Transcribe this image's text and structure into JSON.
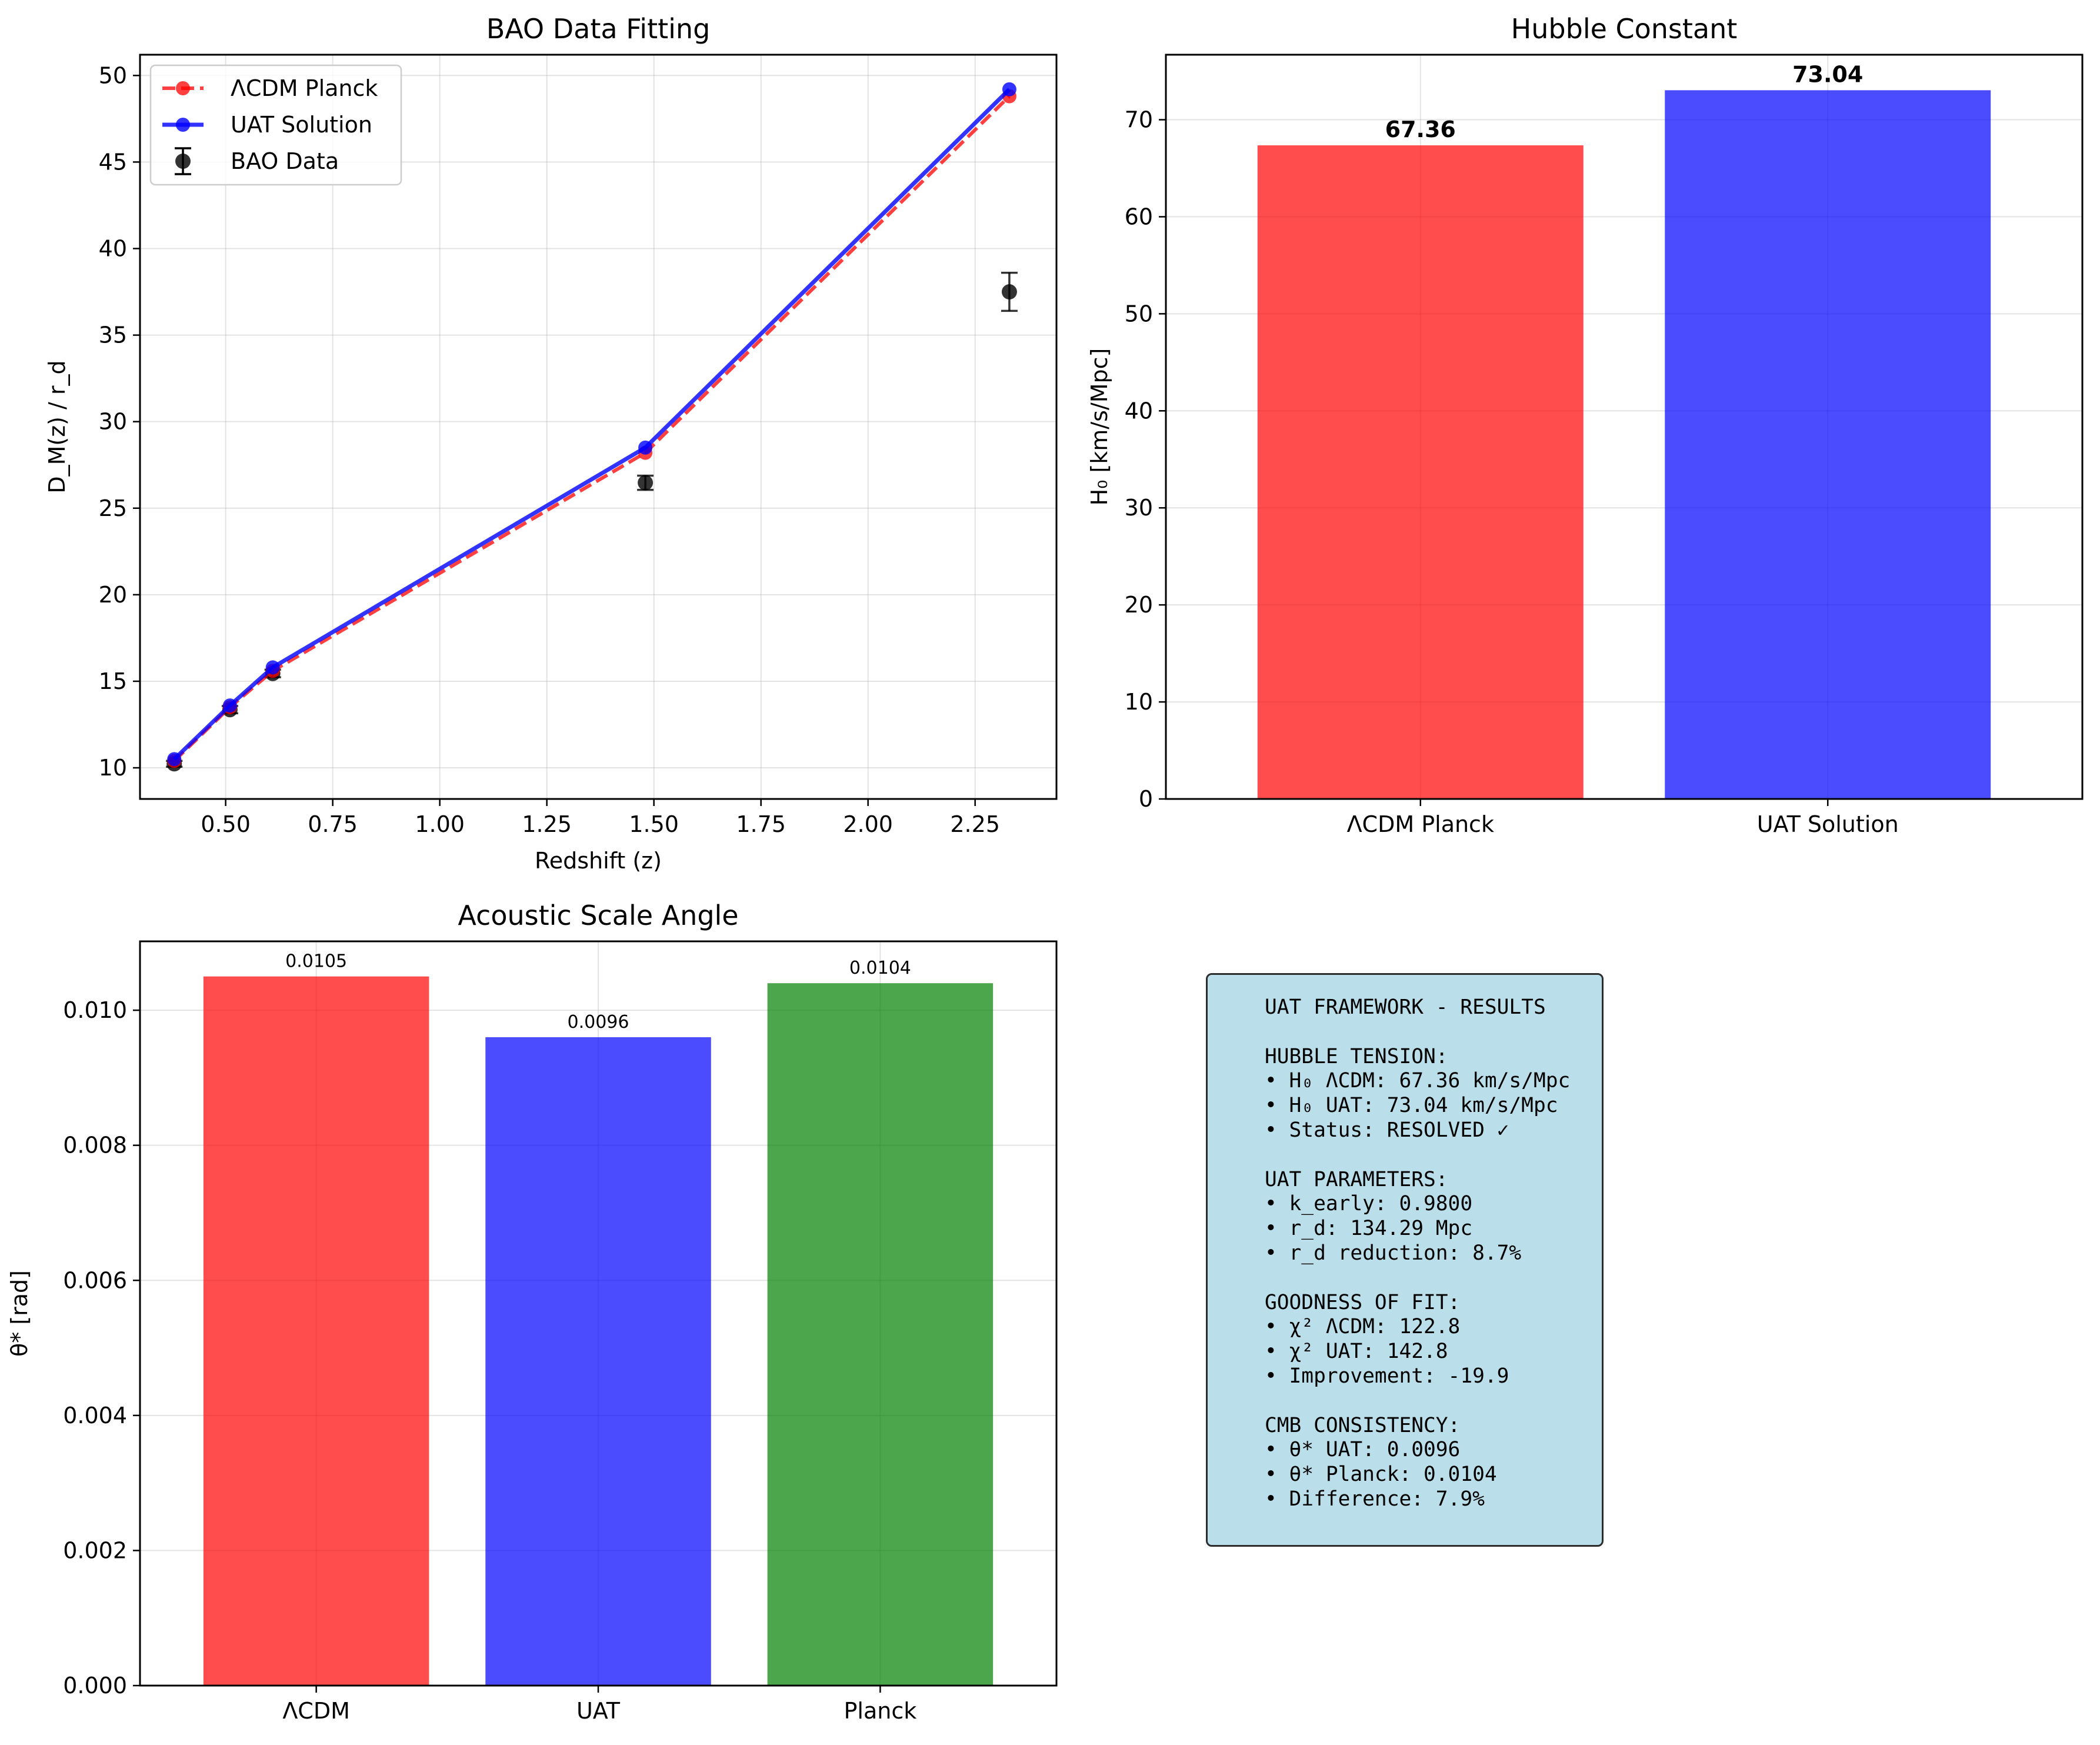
{
  "colors": {
    "lcdm": "#ff0000",
    "uat": "#0000ff",
    "planck": "#008000",
    "data": "#000000",
    "textbox_bg": "#add8e6"
  },
  "chart_data": [
    {
      "type": "line",
      "title": "BAO Data Fitting",
      "xlabel": "Redshift (z)",
      "ylabel": "D_M(z) / r_d",
      "xlim": [
        0.3,
        2.44
      ],
      "ylim": [
        8.2,
        51.2
      ],
      "xticks": [
        0.5,
        0.75,
        1.0,
        1.25,
        1.5,
        1.75,
        2.0,
        2.25
      ],
      "xtick_labels": [
        "0.50",
        "0.75",
        "1.00",
        "1.25",
        "1.50",
        "1.75",
        "2.00",
        "2.25"
      ],
      "yticks": [
        10,
        15,
        20,
        25,
        30,
        35,
        40,
        45,
        50
      ],
      "ytick_labels": [
        "10",
        "15",
        "20",
        "25",
        "30",
        "35",
        "40",
        "45",
        "50"
      ],
      "grid": true,
      "legend": "upper left",
      "series": [
        {
          "name": "ΛCDM Planck",
          "style": "dashed-line-with-circles",
          "color": "#ff0000",
          "x": [
            0.38,
            0.51,
            0.61,
            1.48,
            2.33
          ],
          "y": [
            10.4,
            13.5,
            15.6,
            28.2,
            48.8
          ]
        },
        {
          "name": "UAT Solution",
          "style": "solid-line-with-circles",
          "color": "#0000ff",
          "x": [
            0.38,
            0.51,
            0.61,
            1.48,
            2.33
          ],
          "y": [
            10.5,
            13.6,
            15.8,
            28.5,
            49.2
          ]
        },
        {
          "name": "BAO Data",
          "style": "errorbar-points",
          "color": "#000000",
          "x": [
            0.38,
            0.51,
            0.61,
            1.48,
            2.33
          ],
          "y": [
            10.23,
            13.36,
            15.45,
            26.47,
            37.5
          ],
          "yerr": [
            0.17,
            0.21,
            0.22,
            0.41,
            1.1
          ]
        }
      ]
    },
    {
      "type": "bar",
      "title": "Hubble Constant",
      "xlabel": "",
      "ylabel": "H₀ [km/s/Mpc]",
      "ylim": [
        0,
        76.7
      ],
      "yticks": [
        0,
        10,
        20,
        30,
        40,
        50,
        60,
        70
      ],
      "ytick_labels": [
        "0",
        "10",
        "20",
        "30",
        "40",
        "50",
        "60",
        "70"
      ],
      "grid": true,
      "categories": [
        "ΛCDM Planck",
        "UAT Solution"
      ],
      "values": [
        67.36,
        73.04
      ],
      "value_labels": [
        "67.36",
        "73.04"
      ],
      "colors": [
        "#ff0000",
        "#0000ff"
      ]
    },
    {
      "type": "bar",
      "title": "Acoustic Scale Angle",
      "xlabel": "",
      "ylabel": "θ* [rad]",
      "ylim": [
        0,
        0.01102
      ],
      "yticks": [
        0,
        0.002,
        0.004,
        0.006,
        0.008,
        0.01
      ],
      "ytick_labels": [
        "0.000",
        "0.002",
        "0.004",
        "0.006",
        "0.008",
        "0.010"
      ],
      "grid": true,
      "categories": [
        "ΛCDM",
        "UAT",
        "Planck"
      ],
      "values": [
        0.0105,
        0.0096,
        0.0104
      ],
      "value_labels": [
        "0.0105",
        "0.0096",
        "0.0104"
      ],
      "colors": [
        "#ff0000",
        "#0000ff",
        "#008000"
      ]
    }
  ],
  "results_box": {
    "lines": [
      "UAT FRAMEWORK - RESULTS",
      "",
      "HUBBLE TENSION:",
      "• H₀ ΛCDM: 67.36 km/s/Mpc",
      "• H₀ UAT: 73.04 km/s/Mpc",
      "• Status: RESOLVED ✓",
      "",
      "UAT PARAMETERS:",
      "• k_early: 0.9800",
      "• r_d: 134.29 Mpc",
      "• r_d reduction: 8.7%",
      "",
      "GOODNESS OF FIT:",
      "• χ² ΛCDM: 122.8",
      "• χ² UAT: 142.8",
      "• Improvement: -19.9",
      "",
      "CMB CONSISTENCY:",
      "• θ* UAT: 0.0096",
      "• θ* Planck: 0.0104",
      "• Difference: 7.9%"
    ]
  }
}
